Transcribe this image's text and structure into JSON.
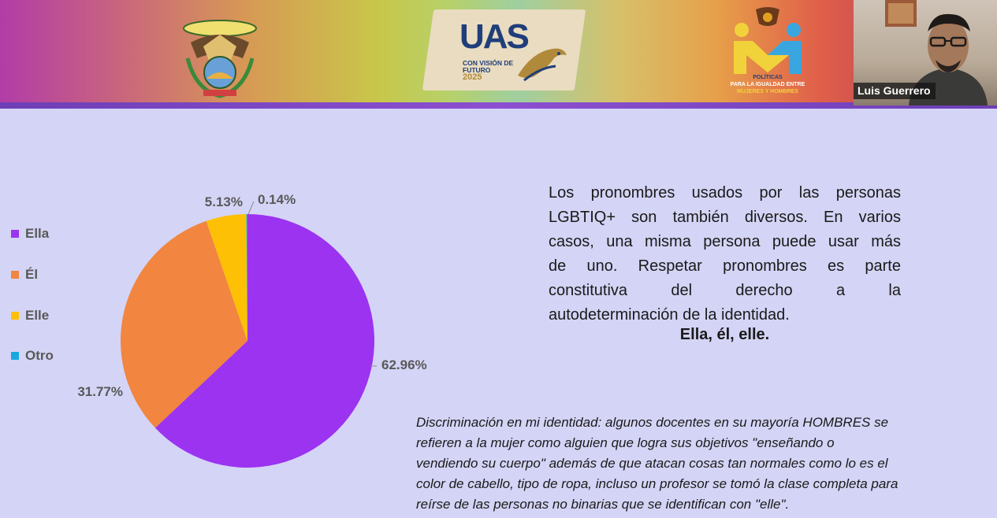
{
  "banner": {
    "uas_logo": {
      "title": "UAS",
      "subtitle_line1": "CON VISIÓN DE",
      "subtitle_line2": "FUTURO",
      "year": "2025"
    },
    "politicas_logo": {
      "line1": "POLÍTICAS",
      "line2": "PARA LA IGUALDAD ENTRE",
      "line3": "MUJERES Y HOMBRES"
    },
    "colors": {
      "accent_bar": "#7a46c8"
    }
  },
  "video_tile": {
    "participant_name": "Luis Guerrero"
  },
  "legend": {
    "items": [
      {
        "label": "Ella",
        "color": "#9b33f0"
      },
      {
        "label": "Él",
        "color": "#f2853f"
      },
      {
        "label": "Elle",
        "color": "#fdc004"
      },
      {
        "label": "Otro",
        "color": "#18a7e0"
      }
    ]
  },
  "chart_data": {
    "type": "pie",
    "categories": [
      "Ella",
      "Él",
      "Elle",
      "Otro"
    ],
    "values": [
      62.96,
      31.77,
      5.13,
      0.14
    ],
    "data_labels": [
      "62.96%",
      "31.77%",
      "5.13%",
      "0.14%"
    ],
    "colors": [
      "#9b33f0",
      "#f2853f",
      "#fdc004",
      "#18a7e0"
    ],
    "legend_position": "left",
    "title": ""
  },
  "paragraph": {
    "lines": [
      "Los pronombres usados por las personas",
      "LGBTIQ+ son también diversos. En varios",
      "casos, una misma persona puede usar más",
      "de uno. Respetar pronombres es parte",
      "constitutiva del derecho a la",
      "autodeterminación de la identidad."
    ],
    "emphasis": "Ella, él, elle."
  },
  "quote": {
    "lines": [
      "Discriminación en mi identidad: algunos docentes en su mayoría HOMBRES se",
      "refieren a la mujer como alguien que logra sus objetivos \"enseñando o",
      "vendiendo su cuerpo\" además de que atacan cosas tan normales como lo es el",
      "color de cabello, tipo de ropa, incluso un profesor se tomó la clase completa para",
      "reírse de las personas no binarias que se identifican con \"elle\"."
    ]
  }
}
